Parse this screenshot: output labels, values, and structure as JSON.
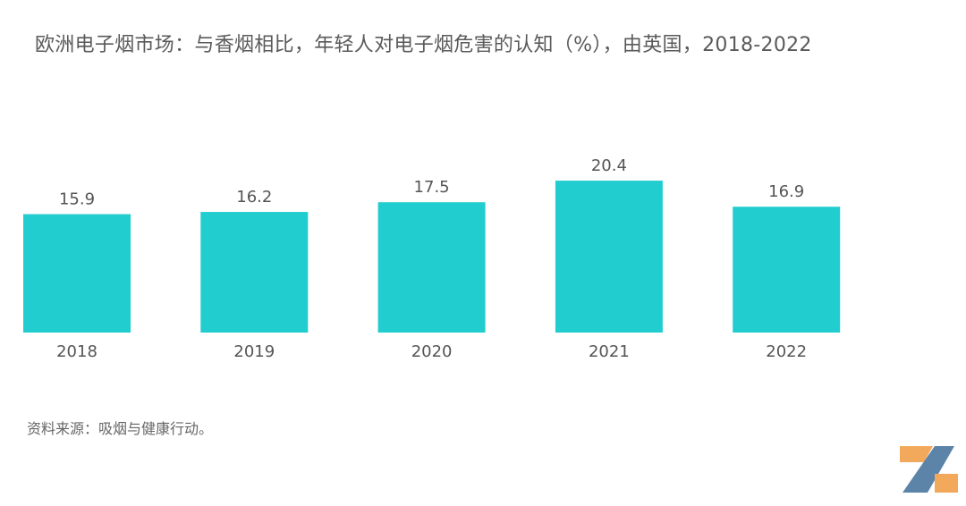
{
  "chart_data": {
    "type": "bar",
    "title": "欧洲电子烟市场：与香烟相比，年轻人对电子烟危害的认知（%），由英国，2018-2022",
    "categories": [
      "2018",
      "2019",
      "2020",
      "2021",
      "2022"
    ],
    "values": [
      15.9,
      16.2,
      17.5,
      20.4,
      16.9
    ],
    "data_labels": [
      "15.9",
      "16.2",
      "17.5",
      "20.4",
      "16.9"
    ],
    "xlabel": "",
    "ylabel": "",
    "ylim": [
      0,
      25
    ],
    "grid": false,
    "bar_color": "#22cdd0"
  },
  "source": "资料来源：吸烟与健康行动。",
  "logo": {
    "colors": [
      "#f2a95c",
      "#5b84a8"
    ]
  }
}
